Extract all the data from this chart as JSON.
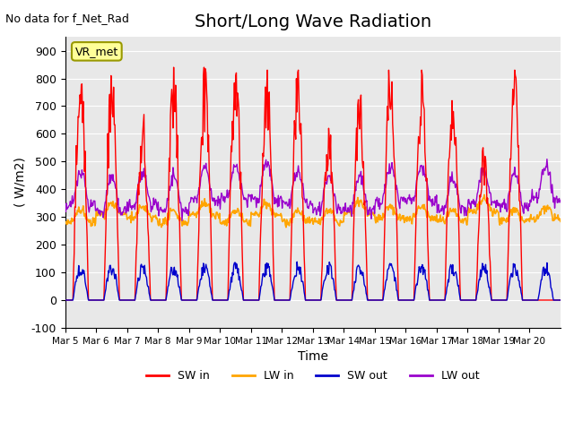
{
  "title": "Short/Long Wave Radiation",
  "top_left_text": "No data for f_Net_Rad",
  "annotation_box": "VR_met",
  "xlabel": "Time",
  "ylabel": "( W/m2)",
  "ylim": [
    -100,
    950
  ],
  "yticks": [
    -100,
    0,
    100,
    200,
    300,
    400,
    500,
    600,
    700,
    800,
    900
  ],
  "xtick_positions": [
    0,
    1,
    2,
    3,
    4,
    5,
    6,
    7,
    8,
    9,
    10,
    11,
    12,
    13,
    14,
    15
  ],
  "xtick_labels": [
    "Mar 5",
    "Mar 6",
    "Mar 7",
    "Mar 8",
    "Mar 9",
    "Mar 10",
    "Mar 11",
    "Mar 12",
    "Mar 13",
    "Mar 14",
    "Mar 15",
    "Mar 16",
    "Mar 17",
    "Mar 18",
    "Mar 19",
    "Mar 20"
  ],
  "colors": {
    "SW_in": "#ff0000",
    "LW_in": "#ffa500",
    "SW_out": "#0000cc",
    "LW_out": "#9900cc"
  },
  "legend_labels": [
    "SW in",
    "LW in",
    "SW out",
    "LW out"
  ],
  "bg_color": "#e8e8e8",
  "title_fontsize": 14,
  "axis_fontsize": 10,
  "n_days": 16,
  "n_per_day": 48,
  "day_scales_SW": [
    0.78,
    0.81,
    0.67,
    0.84,
    0.84,
    0.82,
    0.83,
    0.83,
    0.62,
    0.74,
    0.83,
    0.83,
    0.72,
    0.55,
    0.83,
    0.0
  ]
}
